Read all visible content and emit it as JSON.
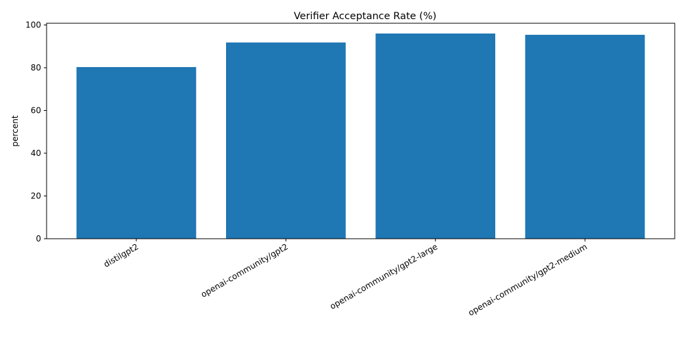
{
  "chart_data": {
    "type": "bar",
    "title": "Verifier Acceptance Rate (%)",
    "xlabel": "",
    "ylabel": "percent",
    "categories": [
      "distilgpt2",
      "openai-community/gpt2",
      "openai-community/gpt2-large",
      "openai-community/gpt2-medium"
    ],
    "values": [
      80.3,
      91.8,
      96.0,
      95.4
    ],
    "ylim": [
      0,
      100
    ],
    "yticks": [
      0,
      20,
      40,
      60,
      80,
      100
    ],
    "color": "#1f77b4",
    "grid": false
  }
}
